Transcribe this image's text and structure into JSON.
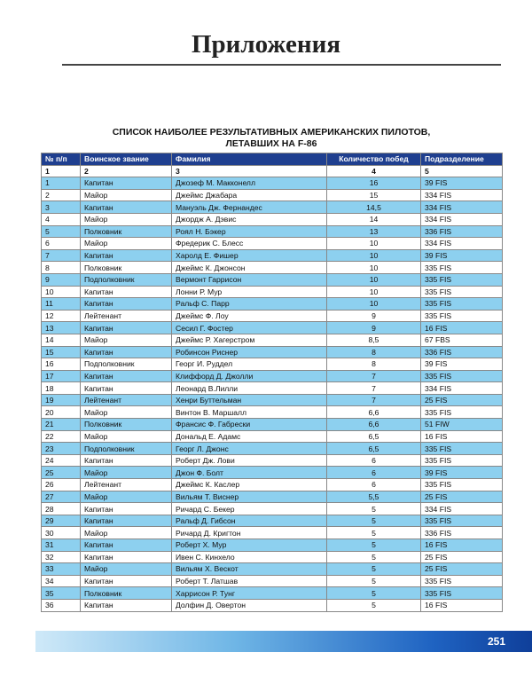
{
  "header": {
    "title": "Приложения"
  },
  "table": {
    "title_lines": [
      "СПИСОК НАИБОЛЕЕ РЕЗУЛЬТАТИВНЫХ АМЕРИКАНСКИХ ПИЛОТОВ,",
      "ЛЕТАВШИХ НА F-86"
    ],
    "columns": [
      "№ п/п",
      "Воинское звание",
      "Фамилия",
      "Количество побед",
      "Подразделение"
    ],
    "column_numbers": [
      "1",
      "2",
      "3",
      "4",
      "5"
    ],
    "rows": [
      [
        "1",
        "Капитан",
        "Джозеф М. Макконелл",
        "16",
        "39 FIS"
      ],
      [
        "2",
        "Майор",
        "Джеймс Джабара",
        "15",
        "334 FIS"
      ],
      [
        "3",
        "Капитан",
        "Мануэль Дж. Фернандес",
        "14,5",
        "334 FIS"
      ],
      [
        "4",
        "Майор",
        "Джордж А. Дэвис",
        "14",
        "334 FIS"
      ],
      [
        "5",
        "Полковник",
        "Роял Н. Бэкер",
        "13",
        "336 FIS"
      ],
      [
        "6",
        "Майор",
        "Фредерик С. Блесс",
        "10",
        "334 FIS"
      ],
      [
        "7",
        "Капитан",
        "Харолд Е. Фишер",
        "10",
        "39 FIS"
      ],
      [
        "8",
        "Полковник",
        "Джеймс К. Джонсон",
        "10",
        "335 FIS"
      ],
      [
        "9",
        "Подполковник",
        "Вермонт Гаррисон",
        "10",
        "335 FIS"
      ],
      [
        "10",
        "Капитан",
        "Лонни Р. Мур",
        "10",
        "335 FIS"
      ],
      [
        "11",
        "Капитан",
        "Ральф С. Парр",
        "10",
        "335 FIS"
      ],
      [
        "12",
        "Лейтенант",
        "Джеймс Ф. Лоу",
        "9",
        "335 FIS"
      ],
      [
        "13",
        "Капитан",
        "Сесил Г. Фостер",
        "9",
        "16 FIS"
      ],
      [
        "14",
        "Майор",
        "Джеймс Р. Хагерстром",
        "8,5",
        "67 FBS"
      ],
      [
        "15",
        "Капитан",
        "Робинсон Риснер",
        "8",
        "336 FIS"
      ],
      [
        "16",
        "Подполковник",
        "Георг И. Руддел",
        "8",
        "39 FIS"
      ],
      [
        "17",
        "Капитан",
        "Клиффорд Д. Джолли",
        "7",
        "335 FIS"
      ],
      [
        "18",
        "Капитан",
        "Леонард В.Лилли",
        "7",
        "334 FIS"
      ],
      [
        "19",
        "Лейтенант",
        "Хенри Буттельман",
        "7",
        "25 FIS"
      ],
      [
        "20",
        "Майор",
        "Винтон В. Маршалл",
        "6,6",
        "335 FIS"
      ],
      [
        "21",
        "Полковник",
        "Франсис Ф. Габрески",
        "6,6",
        "51 FIW"
      ],
      [
        "22",
        "Майор",
        "Дональд Е. Адамс",
        "6,5",
        "16 FIS"
      ],
      [
        "23",
        "Подполковник",
        "Георг Л. Джонс",
        "6,5",
        "335 FIS"
      ],
      [
        "24",
        "Капитан",
        "Роберт Дж. Лови",
        "6",
        "335 FIS"
      ],
      [
        "25",
        "Майор",
        "Джон Ф. Болт",
        "6",
        "39 FIS"
      ],
      [
        "26",
        "Лейтенант",
        "Джеймс К. Каслер",
        "6",
        "335 FIS"
      ],
      [
        "27",
        "Майор",
        "Вильям Т. Виснер",
        "5,5",
        "25 FIS"
      ],
      [
        "28",
        "Капитан",
        "Ричард С. Бекер",
        "5",
        "334 FIS"
      ],
      [
        "29",
        "Капитан",
        "Ральф Д. Гибсон",
        "5",
        "335 FIS"
      ],
      [
        "30",
        "Майор",
        "Ричард Д. Кригтон",
        "5",
        "336 FIS"
      ],
      [
        "31",
        "Капитан",
        "Роберт Х. Мур",
        "5",
        "16 FIS"
      ],
      [
        "32",
        "Капитан",
        "Ивен С. Кинхело",
        "5",
        "25 FIS"
      ],
      [
        "33",
        "Майор",
        "Вильям Х. Вескот",
        "5",
        "25 FIS"
      ],
      [
        "34",
        "Капитан",
        "Роберт Т. Латшав",
        "5",
        "335 FIS"
      ],
      [
        "35",
        "Полковник",
        "Харрисон Р. Тунг",
        "5",
        "335 FIS"
      ],
      [
        "36",
        "Капитан",
        "Долфин Д. Овертон",
        "5",
        "16 FIS"
      ]
    ]
  },
  "footer": {
    "page_number": "251"
  }
}
